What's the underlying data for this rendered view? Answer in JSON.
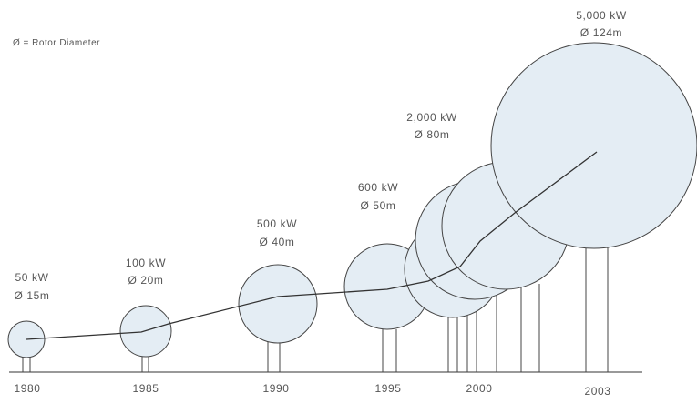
{
  "legend": "Ø = Rotor Diameter",
  "colors": {
    "disc_fill": "#e4edf4",
    "disc_stroke": "#444444",
    "line": "#333333",
    "text": "#555555"
  },
  "turbines": [
    {
      "year": "1980",
      "power": "50 kW",
      "diameter": "Ø 15m"
    },
    {
      "year": "1985",
      "power": "100 kW",
      "diameter": "Ø 20m"
    },
    {
      "year": "1990",
      "power": "500 kW",
      "diameter": "Ø 40m"
    },
    {
      "year": "1995",
      "power": "600 kW",
      "diameter": "Ø 50m"
    },
    {
      "year": "",
      "power": "",
      "diameter": ""
    },
    {
      "year": "",
      "power": "",
      "diameter": ""
    },
    {
      "year": "2000",
      "power": "2,000 kW",
      "diameter": "Ø 80m"
    },
    {
      "year": "2003",
      "power": "5,000 kW",
      "diameter": "Ø 124m"
    }
  ]
}
